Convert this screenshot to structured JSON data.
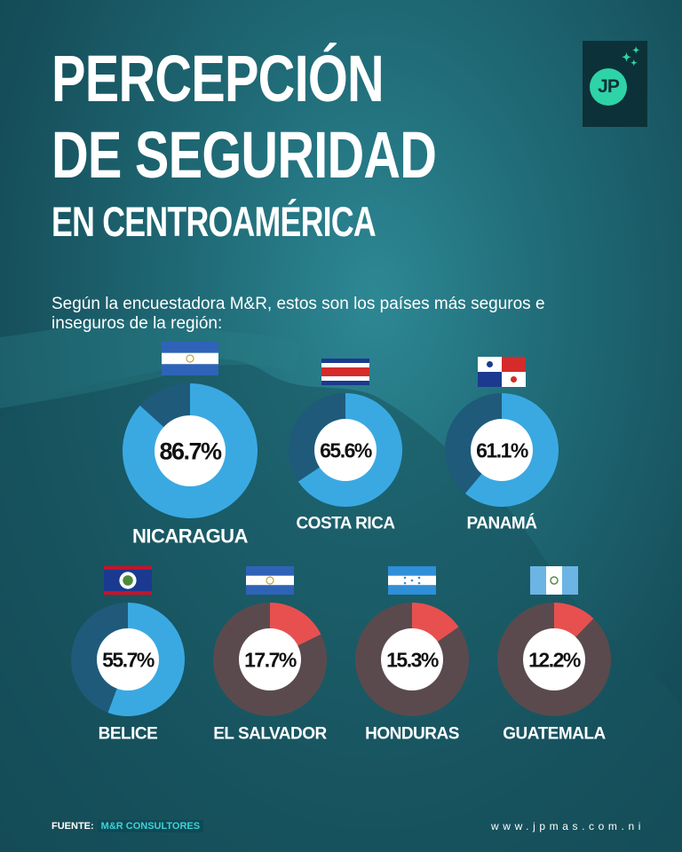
{
  "header": {
    "title_line1": "PERCEPCIÓN",
    "title_line2": "DE SEGURIDAD",
    "title_line3": "EN CENTROAMÉRICA",
    "subtitle": "Según la encuestadora M&R, estos son los países más seguros e inseguros de la región:"
  },
  "logo": {
    "text": "JP"
  },
  "colors": {
    "safe": "#3aa9e2",
    "safe_rest": "#1f5a7a",
    "unsafe": "#e8504f",
    "unsafe_rest": "#5a4a4e"
  },
  "chart_data": {
    "type": "pie",
    "unit": "%",
    "items": [
      {
        "country": "NICARAGUA",
        "value": 86.7,
        "label": "86.7%",
        "group": "safe",
        "flag": "nicaragua"
      },
      {
        "country": "COSTA RICA",
        "value": 65.6,
        "label": "65.6%",
        "group": "safe",
        "flag": "costa-rica"
      },
      {
        "country": "PANAMÁ",
        "value": 61.1,
        "label": "61.1%",
        "group": "safe",
        "flag": "panama"
      },
      {
        "country": "BELICE",
        "value": 55.7,
        "label": "55.7%",
        "group": "safe",
        "flag": "belize"
      },
      {
        "country": "EL SALVADOR",
        "value": 17.7,
        "label": "17.7%",
        "group": "unsafe",
        "flag": "el-salvador"
      },
      {
        "country": "HONDURAS",
        "value": 15.3,
        "label": "15.3%",
        "group": "unsafe",
        "flag": "honduras"
      },
      {
        "country": "GUATEMALA",
        "value": 12.2,
        "label": "12.2%",
        "group": "unsafe",
        "flag": "guatemala"
      }
    ]
  },
  "footer": {
    "source_label": "FUENTE:",
    "source_name": "M&R CONSULTORES",
    "website": "www.jpmas.com.ni"
  }
}
